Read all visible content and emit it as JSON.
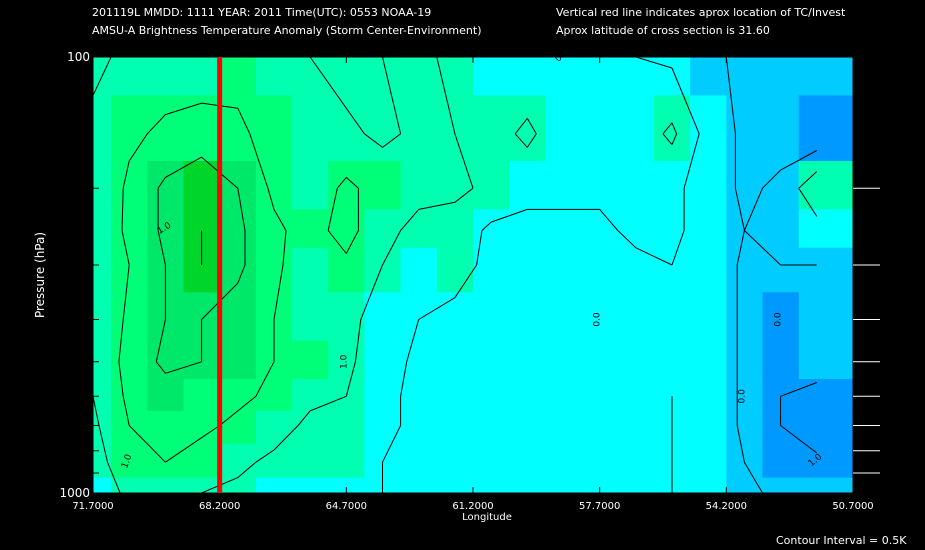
{
  "header": {
    "line1": "201119L  MMDD: 1111 YEAR: 2011 Time(UTC): 0553 NOAA-19",
    "line2": "AMSU-A Brightness Temperature Anomaly (Storm Center-Environment)",
    "line3": "Vertical red line indicates aprox location of TC/Invest",
    "line4": "Aprox latitude of cross section is 31.60"
  },
  "footer": "Contour Interval = 0.5K",
  "colors": {
    "background": "#000000",
    "storm_line": "#ff0000",
    "contour_line": "#000000",
    "fill_levels": [
      "#00ffff",
      "#00ffb0",
      "#00ff78",
      "#00e86a",
      "#00d62a"
    ],
    "fill_negative": [
      "#00ccff",
      "#0099ff"
    ]
  },
  "chart_data": {
    "type": "heatmap",
    "subtype": "filled-contour cross section",
    "xlabel": "Longitude",
    "ylabel": "Pressure (hPa)",
    "x_ticks": [
      "71.7000",
      "68.2000",
      "64.7000",
      "61.2000",
      "57.7000",
      "54.2000",
      "50.7000"
    ],
    "x_range": [
      71.7,
      50.7
    ],
    "y_ticks": [
      "100",
      "1000"
    ],
    "y_range": [
      100,
      1000
    ],
    "y_scale": "log",
    "storm_longitude": 68.2,
    "contour_interval_K": 0.5,
    "contour_labels": [
      "1.0",
      "1.0",
      "1.0",
      "0.0",
      "0.0",
      "0.0",
      "0.0",
      "1.0"
    ],
    "longitudes": [
      71.7,
      70.7,
      69.7,
      68.7,
      67.7,
      66.7,
      65.7,
      64.7,
      63.7,
      62.7,
      61.7,
      60.7,
      59.7,
      58.7,
      57.7,
      56.7,
      55.7,
      54.7,
      53.7,
      52.7,
      51.7
    ],
    "pressures": [
      100,
      150,
      200,
      250,
      300,
      400,
      500,
      600,
      700,
      850,
      1000
    ],
    "anomaly_K": [
      [
        0.4,
        0.6,
        0.7,
        0.7,
        0.8,
        0.6,
        0.5,
        0.3,
        0.5,
        0.6,
        0.4,
        0.2,
        0.1,
        0.0,
        0.0,
        0.0,
        -0.1,
        -0.4,
        -0.6,
        -0.6,
        -0.5
      ],
      [
        0.6,
        0.9,
        1.1,
        1.2,
        1.1,
        0.8,
        0.6,
        0.6,
        0.4,
        0.6,
        0.5,
        0.3,
        0.6,
        0.2,
        0.1,
        0.2,
        0.6,
        -0.2,
        -0.6,
        -0.7,
        -0.9
      ],
      [
        0.5,
        1.1,
        1.6,
        1.9,
        1.5,
        0.9,
        0.7,
        1.1,
        0.8,
        0.6,
        0.6,
        0.4,
        0.2,
        0.1,
        0.1,
        0.1,
        0.1,
        -0.2,
        -0.6,
        -0.4,
        0.4
      ],
      [
        0.6,
        1.1,
        1.6,
        2.0,
        1.6,
        1.1,
        0.8,
        1.2,
        0.6,
        0.4,
        0.3,
        -0.1,
        -0.2,
        -0.1,
        -0.1,
        0.1,
        0.1,
        -0.2,
        -0.5,
        -0.5,
        -0.2
      ],
      [
        0.5,
        1.0,
        1.5,
        2.0,
        1.6,
        1.1,
        0.7,
        0.9,
        0.5,
        0.1,
        0.3,
        -0.2,
        -0.1,
        -0.1,
        -0.1,
        -0.1,
        0.0,
        -0.1,
        -0.6,
        -0.5,
        -0.5
      ],
      [
        0.5,
        1.1,
        1.5,
        1.5,
        1.3,
        1.0,
        0.7,
        0.7,
        0.2,
        0.0,
        -0.2,
        -0.2,
        -0.1,
        -0.1,
        -0.1,
        -0.1,
        -0.1,
        -0.1,
        -0.6,
        -0.8,
        -0.6
      ],
      [
        0.5,
        1.2,
        1.6,
        1.5,
        1.3,
        1.0,
        0.8,
        0.6,
        0.2,
        -0.1,
        -0.2,
        -0.2,
        -0.1,
        -0.1,
        -0.1,
        -0.1,
        -0.1,
        -0.1,
        -0.6,
        -0.8,
        -0.7
      ],
      [
        0.5,
        1.1,
        1.3,
        1.2,
        1.1,
        0.9,
        0.6,
        0.5,
        0.1,
        -0.1,
        -0.1,
        -0.1,
        -0.1,
        -0.1,
        -0.1,
        -0.1,
        0.0,
        -0.1,
        -0.6,
        -1.0,
        -1.2
      ],
      [
        0.4,
        1.0,
        1.1,
        1.1,
        0.9,
        0.7,
        0.4,
        0.4,
        0.1,
        -0.1,
        -0.1,
        -0.1,
        -0.1,
        -0.1,
        -0.1,
        -0.1,
        0.0,
        -0.1,
        -0.6,
        -1.0,
        -1.3
      ],
      [
        0.3,
        0.8,
        1.0,
        0.8,
        0.6,
        0.4,
        0.4,
        0.3,
        0.0,
        -0.1,
        -0.1,
        -0.1,
        -0.1,
        -0.1,
        -0.1,
        -0.1,
        0.0,
        -0.2,
        -0.5,
        -0.8,
        -0.9
      ],
      [
        0.2,
        0.6,
        0.6,
        0.5,
        0.4,
        0.2,
        0.1,
        0.1,
        0.0,
        -0.1,
        -0.1,
        -0.1,
        -0.1,
        -0.1,
        -0.1,
        -0.1,
        0.0,
        -0.1,
        -0.4,
        -0.6,
        -0.6
      ]
    ]
  }
}
